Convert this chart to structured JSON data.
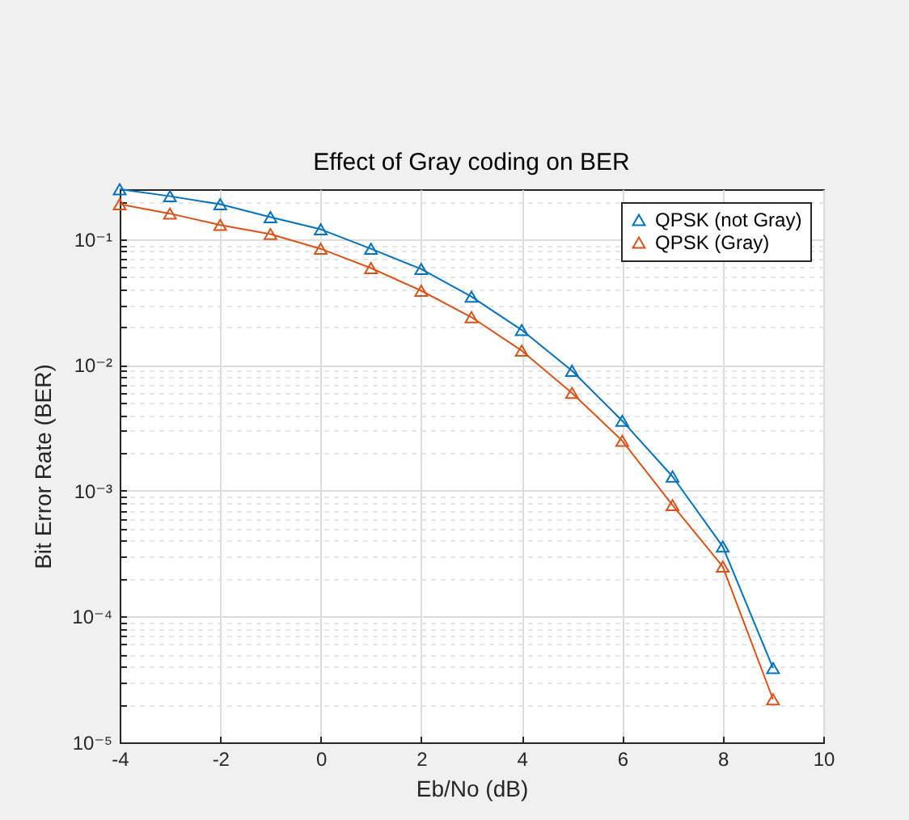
{
  "chart_data": {
    "type": "line",
    "title": "Effect of Gray coding on BER",
    "xlabel": "Eb/No (dB)",
    "ylabel": "Bit Error Rate (BER)",
    "x": [
      -4,
      -3,
      -2,
      -1,
      0,
      1,
      2,
      3,
      4,
      5,
      6,
      7,
      8,
      9
    ],
    "series": [
      {
        "name": "QPSK (not Gray)",
        "color": "#0072bd",
        "values": [
          0.25,
          0.22,
          0.19,
          0.15,
          0.12,
          0.084,
          0.058,
          0.035,
          0.019,
          0.009,
          0.0036,
          0.0013,
          0.00036,
          3.9e-05
        ]
      },
      {
        "name": "QPSK (Gray)",
        "color": "#d95319",
        "values": [
          0.19,
          0.16,
          0.13,
          0.11,
          0.084,
          0.059,
          0.039,
          0.024,
          0.013,
          0.006,
          0.0025,
          0.00077,
          0.00025,
          2.2e-05
        ]
      }
    ],
    "log": "y",
    "xlim": [
      -4,
      10
    ],
    "ylim": [
      1e-05,
      0.25
    ],
    "xticks": [
      -4,
      -2,
      0,
      2,
      4,
      6,
      8,
      10
    ],
    "yticks": [
      {
        "value": 1e-05,
        "label": "10⁻⁵"
      },
      {
        "value": 2e-05,
        "label": null
      },
      {
        "value": 3e-05,
        "label": null
      },
      {
        "value": 4e-05,
        "label": null
      },
      {
        "value": 5e-05,
        "label": null
      },
      {
        "value": 6e-05,
        "label": null
      },
      {
        "value": 7e-05,
        "label": null
      },
      {
        "value": 8e-05,
        "label": null
      },
      {
        "value": 9e-05,
        "label": null
      },
      {
        "value": 0.0001,
        "label": "10⁻⁴"
      },
      {
        "value": 0.0002,
        "label": null
      },
      {
        "value": 0.0003,
        "label": null
      },
      {
        "value": 0.0004,
        "label": null
      },
      {
        "value": 0.0005,
        "label": null
      },
      {
        "value": 0.0006,
        "label": null
      },
      {
        "value": 0.0007,
        "label": null
      },
      {
        "value": 0.0008,
        "label": null
      },
      {
        "value": 0.0009,
        "label": null
      },
      {
        "value": 0.001,
        "label": "10⁻³"
      },
      {
        "value": 0.002,
        "label": null
      },
      {
        "value": 0.003,
        "label": null
      },
      {
        "value": 0.004,
        "label": null
      },
      {
        "value": 0.005,
        "label": null
      },
      {
        "value": 0.006,
        "label": null
      },
      {
        "value": 0.007,
        "label": null
      },
      {
        "value": 0.008,
        "label": null
      },
      {
        "value": 0.009,
        "label": null
      },
      {
        "value": 0.01,
        "label": "10⁻²"
      },
      {
        "value": 0.02,
        "label": null
      },
      {
        "value": 0.03,
        "label": null
      },
      {
        "value": 0.04,
        "label": null
      },
      {
        "value": 0.05,
        "label": null
      },
      {
        "value": 0.06,
        "label": null
      },
      {
        "value": 0.07,
        "label": null
      },
      {
        "value": 0.08,
        "label": null
      },
      {
        "value": 0.09,
        "label": null
      },
      {
        "value": 0.1,
        "label": "10⁻¹"
      },
      {
        "value": 0.2,
        "label": null
      }
    ],
    "grid": true,
    "legend": "top right",
    "marker": "triangle",
    "line_style": "solid"
  }
}
